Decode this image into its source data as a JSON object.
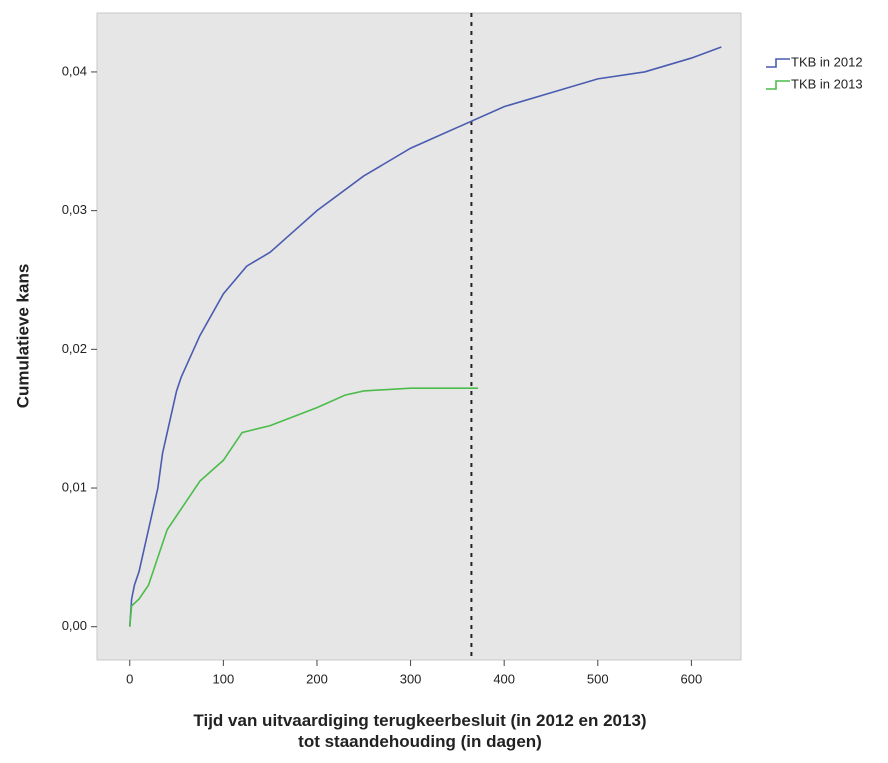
{
  "chart_data": {
    "type": "line",
    "x_label": "Tijd van uitvaardiging terugkeerbesluit (in 2012 en 2013) tot staandehouding (in dagen)",
    "y_label": "Cumulatieve kans",
    "xlim": [
      -35,
      653
    ],
    "ylim": [
      -0.0024,
      0.04425
    ],
    "xticks": [
      0,
      100,
      200,
      300,
      400,
      500,
      600
    ],
    "yticks": [
      {
        "value": 0,
        "label": "0,00"
      },
      {
        "value": 0.01,
        "label": "0,01"
      },
      {
        "value": 0.02,
        "label": "0,02"
      },
      {
        "value": 0.03,
        "label": "0,03"
      },
      {
        "value": 0.04,
        "label": "0,04"
      }
    ],
    "reference_line_x": 365,
    "legend": "outside-top-right",
    "series": [
      {
        "name": "TKB in 2012",
        "color": "#4a5cb0",
        "x": [
          0,
          2,
          5,
          10,
          20,
          30,
          35,
          40,
          50,
          55,
          75,
          100,
          125,
          150,
          175,
          200,
          250,
          300,
          350,
          400,
          450,
          500,
          550,
          600,
          632
        ],
        "values": [
          0,
          0.002,
          0.003,
          0.004,
          0.007,
          0.01,
          0.0125,
          0.014,
          0.017,
          0.018,
          0.021,
          0.024,
          0.026,
          0.027,
          0.0285,
          0.03,
          0.0325,
          0.0345,
          0.036,
          0.0375,
          0.0385,
          0.0395,
          0.04,
          0.041,
          0.0418
        ]
      },
      {
        "name": "TKB in 2013",
        "color": "#4cbc4c",
        "x": [
          0,
          2,
          10,
          20,
          30,
          40,
          50,
          75,
          100,
          120,
          150,
          200,
          230,
          250,
          300,
          372
        ],
        "values": [
          0,
          0.0015,
          0.002,
          0.003,
          0.005,
          0.007,
          0.008,
          0.0105,
          0.012,
          0.014,
          0.0145,
          0.0158,
          0.0167,
          0.017,
          0.0172,
          0.0172
        ]
      }
    ]
  }
}
